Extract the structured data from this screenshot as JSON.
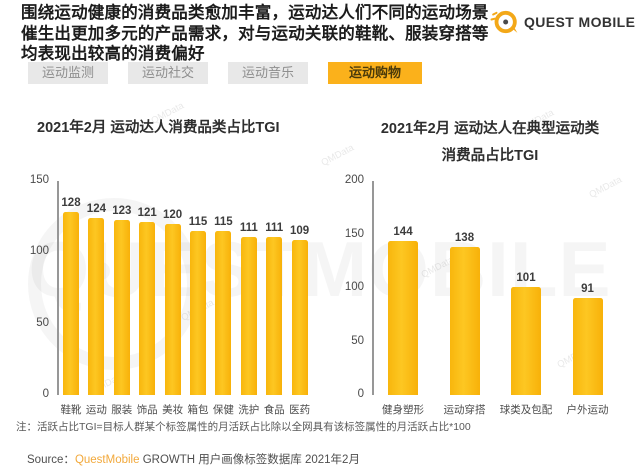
{
  "header": {
    "headline_lines": [
      "围绕运动健康的消费品类愈加丰富，运动达人们不同的运动场景",
      "催生出更加多元的产品需求，对与运动关联的鞋靴、服装穿搭等",
      "均表现出较高的消费偏好"
    ],
    "logo_brand": "QUEST MOBILE"
  },
  "tabs": [
    {
      "label": "运动监测",
      "active": false
    },
    {
      "label": "运动社交",
      "active": false
    },
    {
      "label": "运动音乐",
      "active": false
    },
    {
      "label": "运动购物",
      "active": true
    }
  ],
  "chart_data": [
    {
      "type": "bar",
      "title": "2021年2月 运动达人消费品类占比TGI",
      "categories": [
        "鞋靴",
        "运动",
        "服装",
        "饰品",
        "美妆",
        "箱包",
        "保健",
        "洗护",
        "食品",
        "医药"
      ],
      "values": [
        128,
        124,
        123,
        121,
        120,
        115,
        115,
        111,
        111,
        109
      ],
      "ylim": [
        0,
        150
      ],
      "yticks": [
        150,
        100,
        50,
        0
      ],
      "grid": false,
      "legend": false,
      "bar_color": "#FBBC13"
    },
    {
      "type": "bar",
      "title": "2021年2月 运动达人在典型运动类消费品占比TGI",
      "title_lines": [
        "2021年2月 运动达人在典型运动类",
        "消费品占比TGI"
      ],
      "categories": [
        "健身塑形",
        "运动穿搭",
        "球类及包配",
        "户外运动"
      ],
      "values": [
        144,
        138,
        101,
        91
      ],
      "ylim": [
        0,
        200
      ],
      "yticks": [
        200,
        150,
        100,
        50,
        0
      ],
      "grid": false,
      "legend": false,
      "bar_color": "#FBBC13"
    }
  ],
  "note": "注：活跃占比TGI=目标人群某个标签属性的月活跃占比除以全网具有该标签属性的月活跃占比*100",
  "source": {
    "prefix": "Source：",
    "brand": "QuestMobile",
    "rest": " GROWTH 用户画像标签数据库 2021年2月"
  },
  "watermarks": {
    "big": "QUESTMOBILE",
    "small": "QMData"
  },
  "colors": {
    "accent": "#FBB11B",
    "bar": "#FBBC13",
    "inactive_tab_bg": "#E8E8E8",
    "source_brand": "#F2A93C"
  }
}
